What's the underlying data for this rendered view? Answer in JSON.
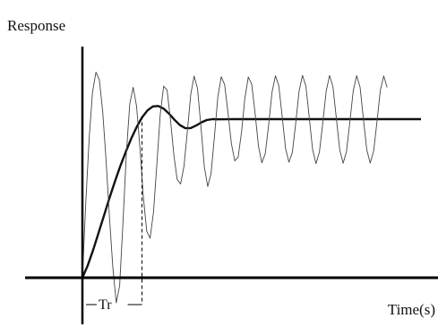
{
  "chart_data": {
    "type": "line",
    "title": "",
    "ylabel": "Response",
    "xlabel": "Time(s)",
    "xlim": [
      0,
      10
    ],
    "ylim": [
      -0.1,
      1.3
    ],
    "grid": false,
    "series": [
      {
        "name": "",
        "style": "thick",
        "x": [
          0,
          0.16,
          0.32,
          0.48,
          0.64,
          0.8,
          0.96,
          1.12,
          1.28,
          1.44,
          1.6,
          1.76,
          1.92,
          2.08,
          2.24,
          2.4,
          2.56,
          2.72,
          2.88,
          3.04,
          3.2,
          3.36,
          3.52,
          3.68,
          3.84,
          4.0,
          4.5,
          5.0,
          5.5,
          6.0,
          6.5,
          7.0,
          7.5,
          8.0,
          8.5,
          9.0,
          9.5,
          10.0
        ],
        "y": [
          0,
          0.078,
          0.177,
          0.284,
          0.394,
          0.503,
          0.607,
          0.704,
          0.794,
          0.876,
          0.949,
          1.01,
          1.055,
          1.08,
          1.083,
          1.066,
          1.034,
          0.996,
          0.962,
          0.943,
          0.944,
          0.96,
          0.98,
          0.995,
          1.0,
          0.999,
          1.0,
          1.0,
          1.0,
          1.0,
          1.0,
          1.0,
          1.0,
          1.0,
          1.0,
          1.0,
          1.0,
          1.0
        ]
      },
      {
        "name": "",
        "style": "thin",
        "x": [
          0,
          0.1,
          0.2,
          0.3,
          0.4,
          0.5,
          0.6,
          0.7,
          0.8,
          0.9,
          1.0,
          1.1,
          1.2,
          1.3,
          1.4,
          1.5,
          1.6,
          1.7,
          1.8,
          1.9,
          2.0,
          2.1,
          2.2,
          2.3,
          2.4,
          2.5,
          2.6,
          2.7,
          2.8,
          2.9,
          3.0,
          3.1,
          3.2,
          3.3,
          3.4,
          3.5,
          3.6,
          3.7,
          3.8,
          3.9,
          4.0,
          4.1,
          4.2,
          4.3,
          4.4,
          4.5,
          4.6,
          4.7,
          4.8,
          4.9,
          5.0,
          5.1,
          5.2,
          5.3,
          5.4,
          5.5,
          5.6,
          5.7,
          5.8,
          5.9,
          6.0,
          6.1,
          6.2,
          6.3,
          6.4,
          6.5,
          6.6,
          6.7,
          6.8,
          6.9,
          7.0,
          7.1,
          7.2,
          7.3,
          7.4,
          7.5,
          7.6,
          7.7,
          7.8,
          7.9,
          8.0,
          8.1,
          8.2,
          8.3,
          8.4,
          8.5,
          8.6,
          8.7,
          8.8,
          8.9,
          9.0
        ],
        "y": [
          0.0,
          0.476,
          0.884,
          1.17,
          1.296,
          1.249,
          1.046,
          0.734,
          0.382,
          0.064,
          -0.158,
          -0.049,
          0.358,
          0.787,
          1.098,
          1.201,
          1.081,
          0.815,
          0.512,
          0.293,
          0.249,
          0.415,
          0.721,
          1.03,
          1.208,
          1.184,
          0.998,
          0.774,
          0.62,
          0.591,
          0.702,
          0.926,
          1.157,
          1.272,
          1.194,
          0.955,
          0.7,
          0.575,
          0.656,
          0.889,
          1.14,
          1.267,
          1.217,
          1.043,
          0.847,
          0.737,
          0.761,
          0.921,
          1.133,
          1.266,
          1.221,
          1.037,
          0.828,
          0.725,
          0.781,
          0.962,
          1.17,
          1.273,
          1.213,
          1.018,
          0.816,
          0.728,
          0.79,
          0.973,
          1.176,
          1.276,
          1.209,
          1.01,
          0.808,
          0.72,
          0.792,
          0.979,
          1.178,
          1.275,
          1.205,
          1.006,
          0.807,
          0.722,
          0.795,
          0.983,
          1.18,
          1.274,
          1.202,
          1.003,
          0.806,
          0.723,
          0.797,
          0.985,
          1.181,
          1.273,
          1.2
        ]
      }
    ],
    "annotations": [
      {
        "label": "Tr",
        "x_start": 0,
        "x_end": 1.76
      }
    ]
  }
}
